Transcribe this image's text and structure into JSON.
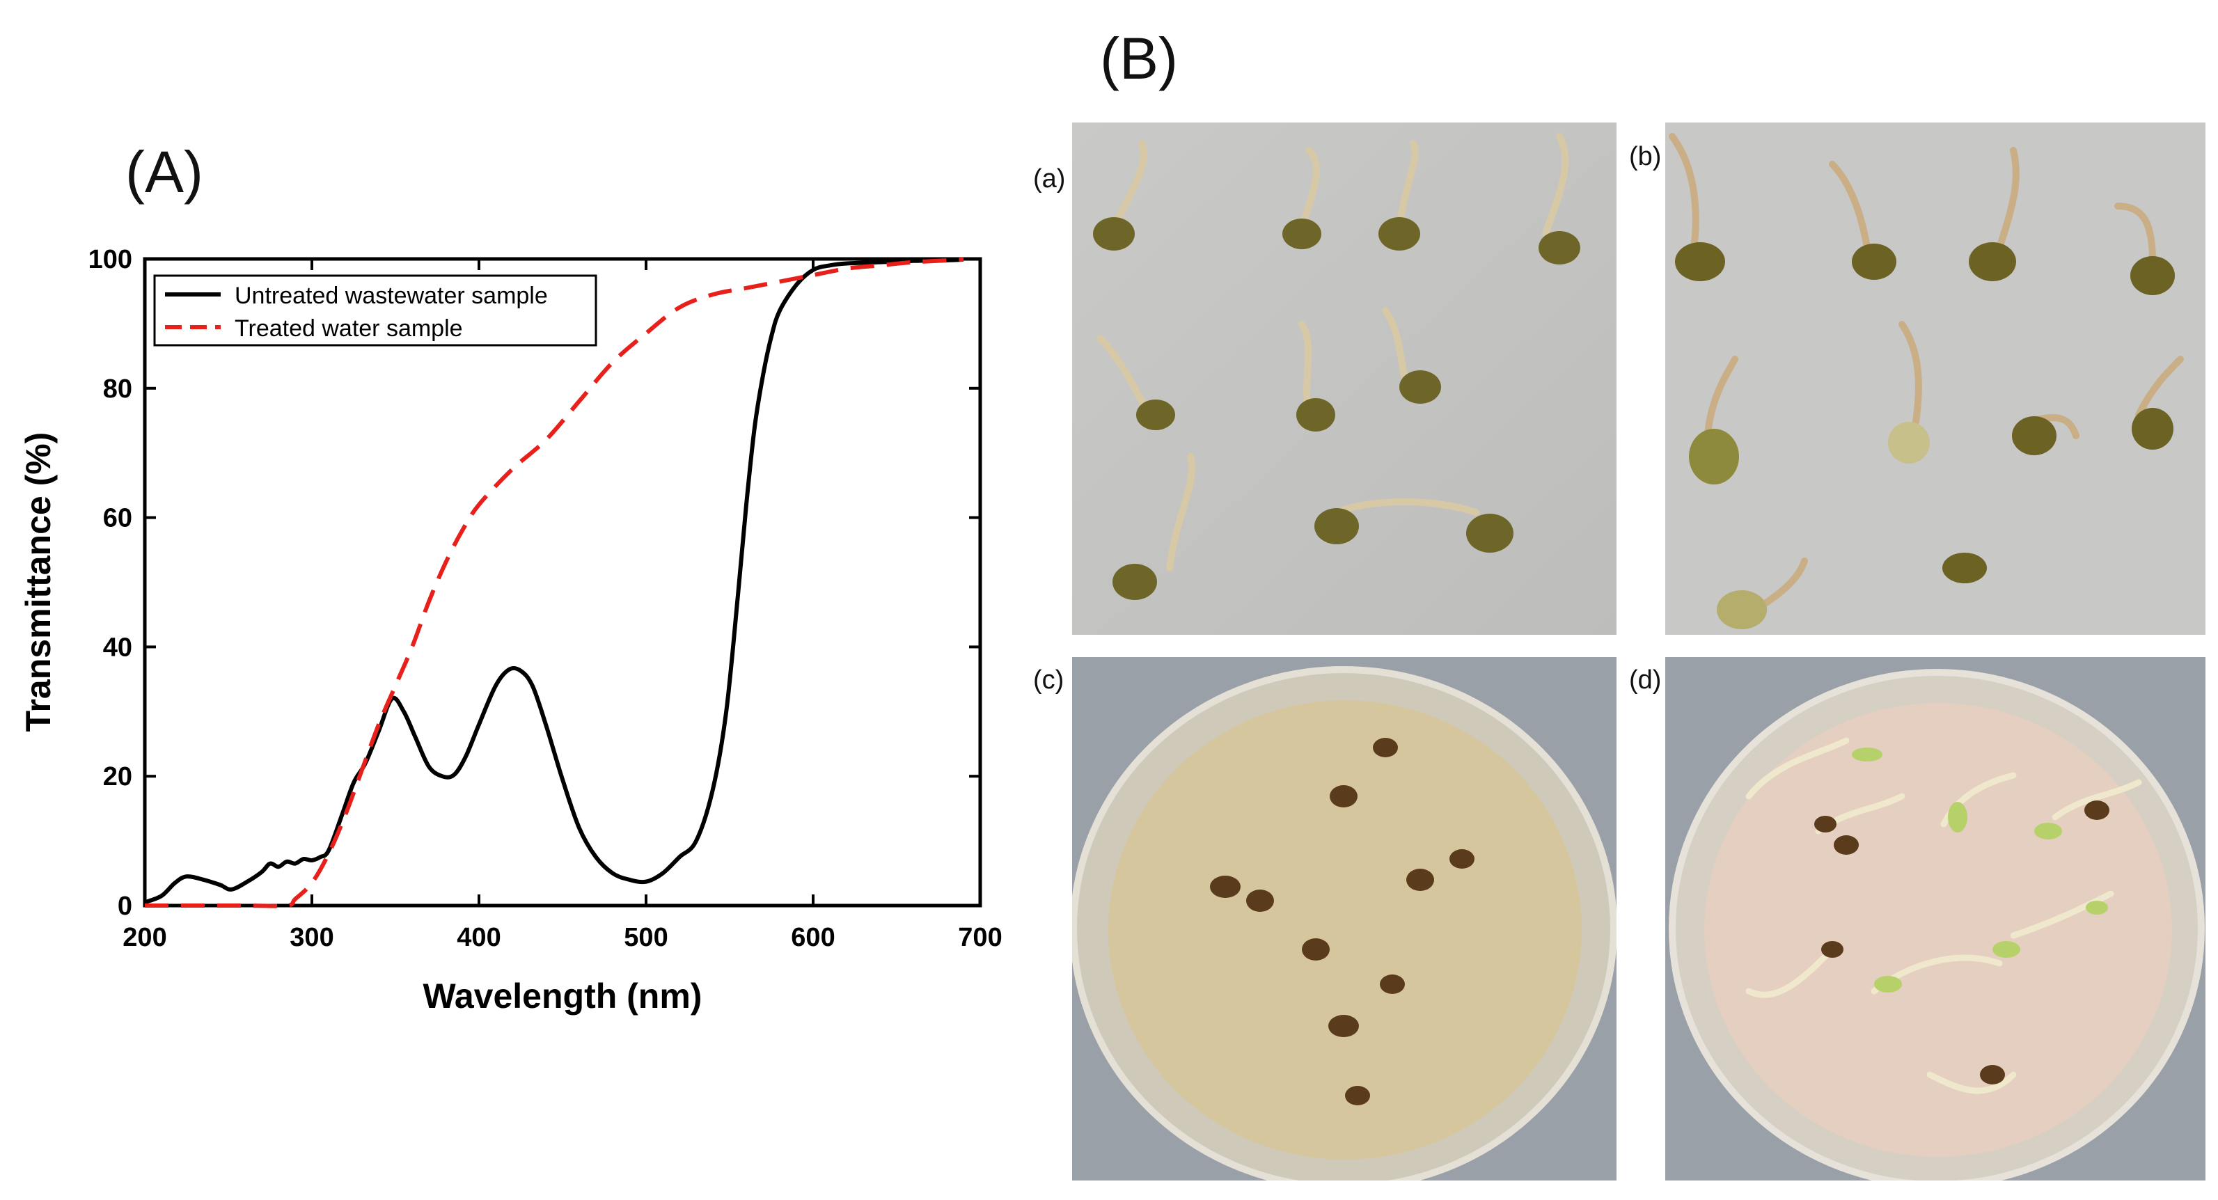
{
  "figure": {
    "panel_a_label": "(A)",
    "panel_b_label": "(B)",
    "photo_labels": [
      "(a)",
      "(b)",
      "(c)",
      "(d)"
    ]
  },
  "chart_data": {
    "type": "line",
    "title": "",
    "xlabel": "Wavelength (nm)",
    "ylabel": "Transmittance (%)",
    "xlim": [
      200,
      700
    ],
    "ylim": [
      0,
      100
    ],
    "xticks": [
      200,
      300,
      400,
      500,
      600,
      700
    ],
    "yticks": [
      0,
      20,
      40,
      60,
      80,
      100
    ],
    "grid": false,
    "legend_position": "top-left",
    "series": [
      {
        "name": "Untreated wastewater sample",
        "color": "#000000",
        "style": "solid",
        "x": [
          200,
          210,
          218,
          225,
          235,
          245,
          252,
          262,
          270,
          275,
          280,
          285,
          290,
          295,
          300,
          305,
          310,
          318,
          325,
          332,
          340,
          348,
          355,
          362,
          370,
          378,
          385,
          392,
          400,
          410,
          418,
          425,
          432,
          440,
          450,
          460,
          470,
          480,
          490,
          500,
          510,
          520,
          530,
          540,
          548,
          555,
          560,
          565,
          570,
          575,
          580,
          590,
          600,
          610,
          620,
          640,
          660,
          680,
          690
        ],
        "y": [
          0.5,
          1.5,
          3.5,
          4.5,
          4,
          3.2,
          2.5,
          3.8,
          5.2,
          6.5,
          6,
          6.8,
          6.5,
          7.2,
          7,
          7.5,
          8.5,
          14,
          19,
          22,
          27,
          32,
          30,
          26,
          21.5,
          20,
          20.2,
          23,
          28,
          34,
          36.5,
          36.3,
          34,
          28,
          19.5,
          12,
          7.5,
          5,
          4,
          3.7,
          5,
          7.5,
          10,
          18,
          30,
          48,
          62,
          74,
          82,
          88,
          92,
          96,
          98.3,
          99,
          99.3,
          99.5,
          99.7,
          99.8,
          99.9
        ]
      },
      {
        "name": "Treated water sample",
        "color": "#e8201c",
        "style": "dashed",
        "x": [
          200,
          260,
          285,
          290,
          300,
          310,
          320,
          330,
          340,
          350,
          360,
          370,
          380,
          390,
          400,
          420,
          440,
          460,
          480,
          500,
          520,
          540,
          560,
          580,
          600,
          620,
          640,
          660,
          690
        ],
        "y": [
          0,
          0,
          0,
          1,
          3.5,
          8,
          14,
          21,
          28,
          34,
          40,
          47,
          53,
          58,
          62,
          67.5,
          72,
          78,
          84,
          88.5,
          92.5,
          94.5,
          95.5,
          96.5,
          97.5,
          98.5,
          99,
          99.5,
          99.9
        ]
      }
    ]
  }
}
